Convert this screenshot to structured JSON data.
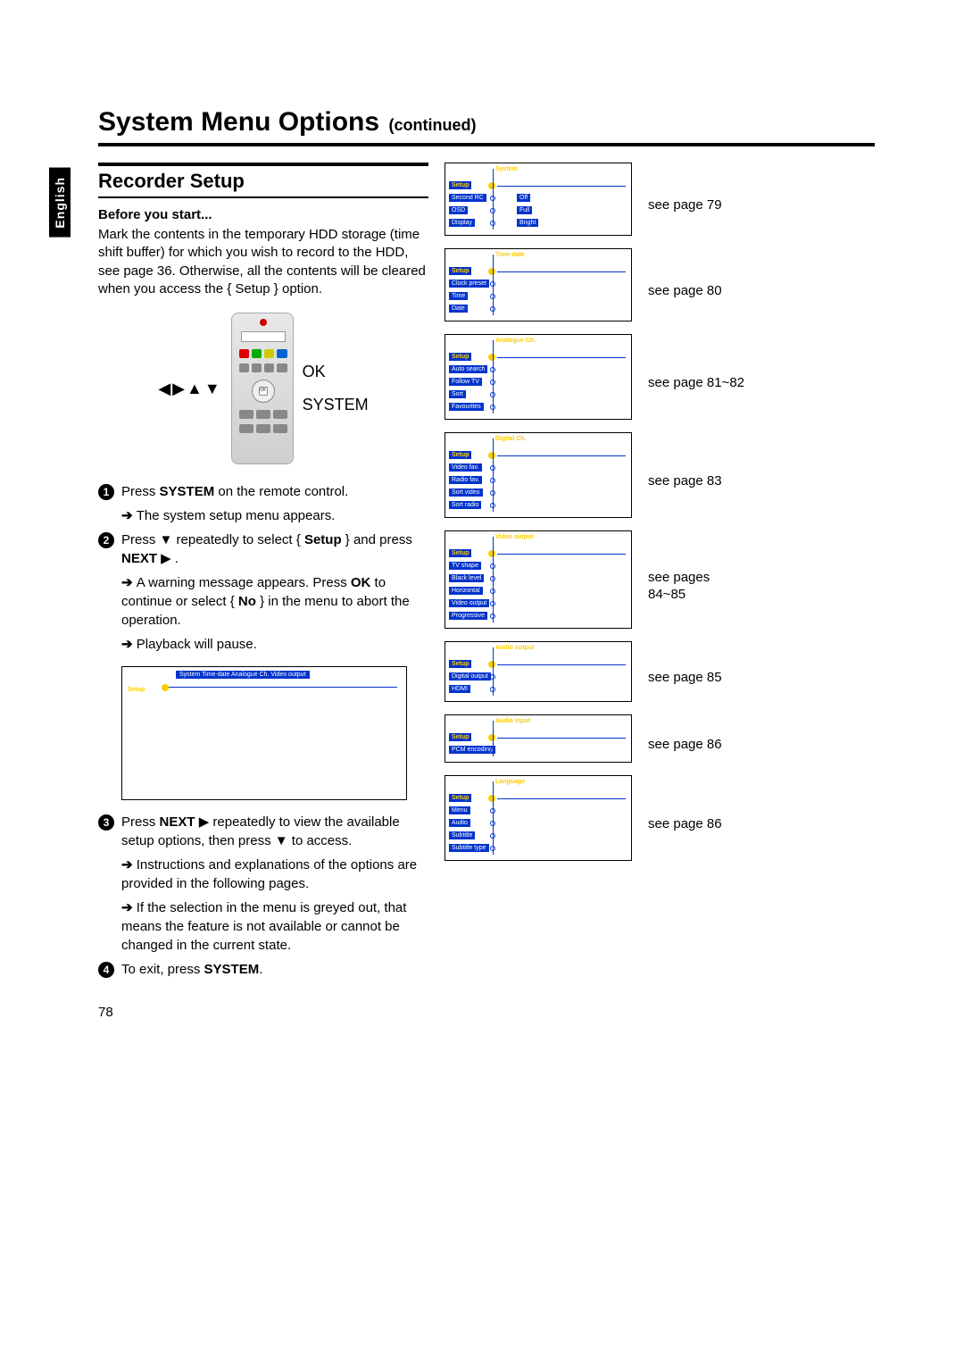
{
  "title": {
    "main": "System Menu Options",
    "continued": "(continued)"
  },
  "language_tab": "English",
  "section_title": "Recorder Setup",
  "before_start": {
    "heading": "Before you start...",
    "text": "Mark the contents in the temporary HDD storage (time shift buffer) for which you wish to record to the HDD, see page 36. Otherwise, all the contents will be cleared when you access the { Setup } option."
  },
  "remote": {
    "arrows": "◀▶▲▼",
    "ok": "OK",
    "system": "SYSTEM"
  },
  "steps": {
    "s1": {
      "num": "1",
      "text_pre": "Press ",
      "text_bold": "SYSTEM",
      "text_post": " on the remote control."
    },
    "s1_result": "The system setup menu appears.",
    "s2": {
      "num": "2",
      "text": "Press ▼ repeatedly to select { ",
      "bold": "Setup",
      "post": " } and press ",
      "bold2": "NEXT",
      "arrow": " ▶ ."
    },
    "s2_r1_pre": "A warning message appears. Press ",
    "s2_r1_bold": "OK",
    "s2_r1_post": " to continue or select { ",
    "s2_r1_bold2": "No",
    "s2_r1_post2": " } in the menu to abort the operation.",
    "s2_r2": "Playback will pause.",
    "s3": {
      "num": "3",
      "pre": "Press ",
      "bold": "NEXT",
      "post": " ▶  repeatedly to view the available setup options, then press ▼ to access."
    },
    "s3_r1": "Instructions and explanations of the options are provided in the following pages.",
    "s3_r2": "If the selection in the menu is greyed out, that means the feature is not available or cannot be changed in the current state.",
    "s4": {
      "num": "4",
      "pre": "To exit, press ",
      "bold": "SYSTEM",
      "post": "."
    }
  },
  "left_menu_screenshot": {
    "header_items": "System  Time-date  Analogue Ch.  Video output",
    "setup_label": "Setup"
  },
  "right_panels": [
    {
      "tab": "System",
      "setup": "Setup",
      "rows": [
        [
          "Second RC",
          "Off"
        ],
        [
          "OSD",
          "Full"
        ],
        [
          "Display",
          "Bright"
        ]
      ],
      "ref": "see page 79"
    },
    {
      "tab": "Time-date",
      "setup": "Setup",
      "rows": [
        [
          "Clock preset",
          ""
        ],
        [
          "Time",
          ""
        ],
        [
          "Date",
          ""
        ]
      ],
      "ref": "see page 80"
    },
    {
      "tab": "Analogue Ch.",
      "setup": "Setup",
      "rows": [
        [
          "Auto search",
          ""
        ],
        [
          "Follow TV",
          ""
        ],
        [
          "Sort",
          ""
        ],
        [
          "Favourites",
          ""
        ]
      ],
      "ref": "see page 81~82"
    },
    {
      "tab": "Digital Ch.",
      "setup": "Setup",
      "rows": [
        [
          "Video fav.",
          ""
        ],
        [
          "Radio fav.",
          ""
        ],
        [
          "Sort video",
          ""
        ],
        [
          "Sort radio",
          ""
        ]
      ],
      "ref": "see page 83"
    },
    {
      "tab": "Video output",
      "setup": "Setup",
      "rows": [
        [
          "TV shape",
          ""
        ],
        [
          "Black level",
          ""
        ],
        [
          "Horizontal",
          ""
        ],
        [
          "Video output",
          ""
        ],
        [
          "Progressive",
          ""
        ]
      ],
      "ref": "see pages 84~85"
    },
    {
      "tab": "Audio output",
      "setup": "Setup",
      "rows": [
        [
          "Digital output",
          ""
        ],
        [
          "HDMI",
          ""
        ]
      ],
      "ref": "see page 85"
    },
    {
      "tab": "Audio input",
      "setup": "Setup",
      "rows": [
        [
          "PCM encoding",
          ""
        ]
      ],
      "ref": "see page 86"
    },
    {
      "tab": "Language",
      "setup": "Setup",
      "rows": [
        [
          "Menu",
          ""
        ],
        [
          "Audio",
          ""
        ],
        [
          "Subtitle",
          ""
        ],
        [
          "Subtitle type",
          ""
        ]
      ],
      "ref": "see page 86"
    }
  ],
  "page_number": "78",
  "colors": {
    "menu_blue": "#0033cc",
    "menu_yellow": "#ffcc00"
  }
}
